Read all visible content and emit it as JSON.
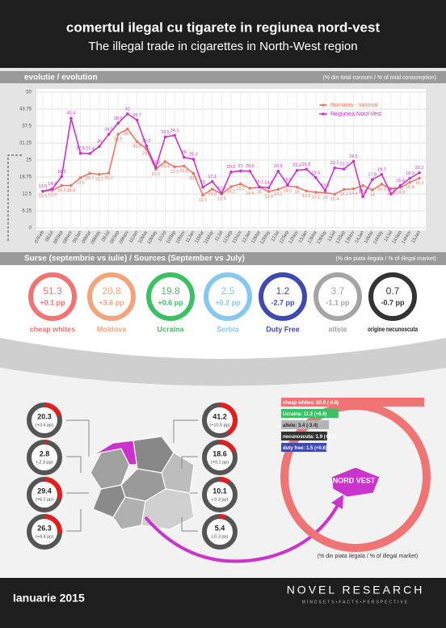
{
  "header": {
    "title": "comertul ilegal cu tigarete in regiunea nord-vest",
    "subtitle": "The illegal trade in cigarettes in North-West region"
  },
  "chart_data": {
    "type": "line",
    "section": "evolutie / evolution",
    "unit_note": "(% din total consum / % of total consumption)",
    "categories": [
      "07Feb",
      "08Jul",
      "08Sep",
      "08Nov",
      "09Jan",
      "09Mar",
      "09May",
      "09Jul",
      "09Sep",
      "09Nov",
      "10Jan",
      "10Mar",
      "10May",
      "10Jul",
      "10Sep",
      "10Nov",
      "11Jan",
      "11Mar",
      "11May",
      "11Jul",
      "11Sep",
      "11Nov",
      "12Jan",
      "12Mar",
      "12May",
      "12Jul",
      "12Sep",
      "12Nov",
      "13Jan",
      "13Mar",
      "13May",
      "13Jul",
      "13Sep",
      "13Nov",
      "14Jan",
      "14Mar",
      "14May",
      "14Jul",
      "14Sep",
      "14Nov",
      "15Jan"
    ],
    "series": [
      {
        "name": "Romania - national",
        "color": "#ee7766",
        "values": [
          13.5,
          13.9,
          15.6,
          15.6,
          18.5,
          20.1,
          19.7,
          20.2,
          34.5,
          36.4,
          31.8,
          29.1,
          21.6,
          24.4,
          22.5,
          22.8,
          20.1,
          12.1,
          14.3,
          12.5,
          15.2,
          16.2,
          14.6,
          15.0,
          13.4,
          14.2,
          15.5,
          15.0,
          13.6,
          13.1,
          13.0,
          12.4,
          14.2,
          14.4,
          15.6,
          14.0,
          16.1,
          14.4,
          14.9,
          16.8,
          18.3
        ]
      },
      {
        "name": "Regiunea Nord-Vest",
        "color": "#cc33cc",
        "values": [
          13.5,
          14.4,
          18.9,
          40.4,
          27.5,
          27.4,
          30,
          34.5,
          38.6,
          42.0,
          39.7,
          30.2,
          22.3,
          33.5,
          34.1,
          26.0,
          25.3,
          15.0,
          17.1,
          12.8,
          20.6,
          21.0,
          20.9,
          15.1,
          14.8,
          20.9,
          15.9,
          21.2,
          21.6,
          18.5,
          13.8,
          22.1,
          21.7,
          24.5,
          11.5,
          17.8,
          19.7,
          12.5,
          15.6,
          18.3,
          20.3
        ]
      }
    ],
    "ylim": [
      0,
      50
    ],
    "yticks": [
      0,
      6.25,
      12.5,
      18.75,
      25,
      31.25,
      37.5,
      43.75,
      50
    ],
    "grid": true,
    "legend": "top-right"
  },
  "sources": {
    "section": "Surse (septembrie vs iulie) / Sources (September vs July)",
    "unit_note": "(% din piata ilegala / % of illegal market)",
    "items": [
      {
        "name": "cheap whites",
        "value": 51.3,
        "change": "+0.1 pp",
        "color": "#f07474"
      },
      {
        "name": "Moldova",
        "value": 20.8,
        "change": "+3.6 pp",
        "color": "#f4a47a"
      },
      {
        "name": "Ucraina",
        "value": 19.8,
        "change": "+0.6 pp",
        "color": "#3cc064"
      },
      {
        "name": "Serbia",
        "value": 2.5,
        "change": "+0.2 pp",
        "color": "#86c8f0"
      },
      {
        "name": "Duty Free",
        "value": 1.2,
        "change": "-2.7 pp",
        "color": "#3e4ab0"
      },
      {
        "name": "altele",
        "value": 3.7,
        "change": "-1.1 pp",
        "color": "#a4a4a4"
      },
      {
        "name": "origine necunoscuta",
        "value": 0.7,
        "change": "-0.7 pp",
        "color": "#333333"
      }
    ]
  },
  "regions": {
    "left": [
      {
        "value": 20.3,
        "change": "(+3.4 pp)"
      },
      {
        "value": 2.8,
        "change": "(-2.3 pp)"
      },
      {
        "value": 29.4,
        "change": "(+6.2 pp)"
      },
      {
        "value": 26.3,
        "change": "(+4.4 pp)"
      }
    ],
    "right": [
      {
        "value": 41.2,
        "change": "(+10.5 pp)"
      },
      {
        "value": 18.6,
        "change": "(+9.1 pp)"
      },
      {
        "value": 10.1,
        "change": "(-0.3 pp)"
      },
      {
        "value": 5.4,
        "change": "(-0.3 pp)"
      }
    ]
  },
  "nord_vest": {
    "label": "NORD VEST",
    "unit_note": "(% din piata ilegala / % of illegal market)",
    "bars": [
      {
        "name": "cheap whites:",
        "value": 82.0,
        "value_label": "82.0",
        "change": "(-4.6)",
        "color": "#f07474"
      },
      {
        "name": "Ucraina:",
        "value": 11.2,
        "value_label": "11.2",
        "change": "(+6.6)",
        "color": "#3cc064"
      },
      {
        "name": "altele:",
        "value": 3.4,
        "value_label": "3.4",
        "change": "(-3.4)",
        "color": "#b4b4b4"
      },
      {
        "name": "necunoscuta:",
        "value": 1.9,
        "value_label": "1.9",
        "change": "(+0.6)",
        "color": "#333333"
      },
      {
        "name": "duty free:",
        "value": 1.5,
        "value_label": "1.5",
        "change": "(+0.6)",
        "color": "#3e4ab0"
      }
    ]
  },
  "footer": {
    "date": "Ianuarie 2015",
    "brand": "NOVEL RESEARCH",
    "tagline": "MINDSETS•FACTS•PERSPECTIVE"
  }
}
